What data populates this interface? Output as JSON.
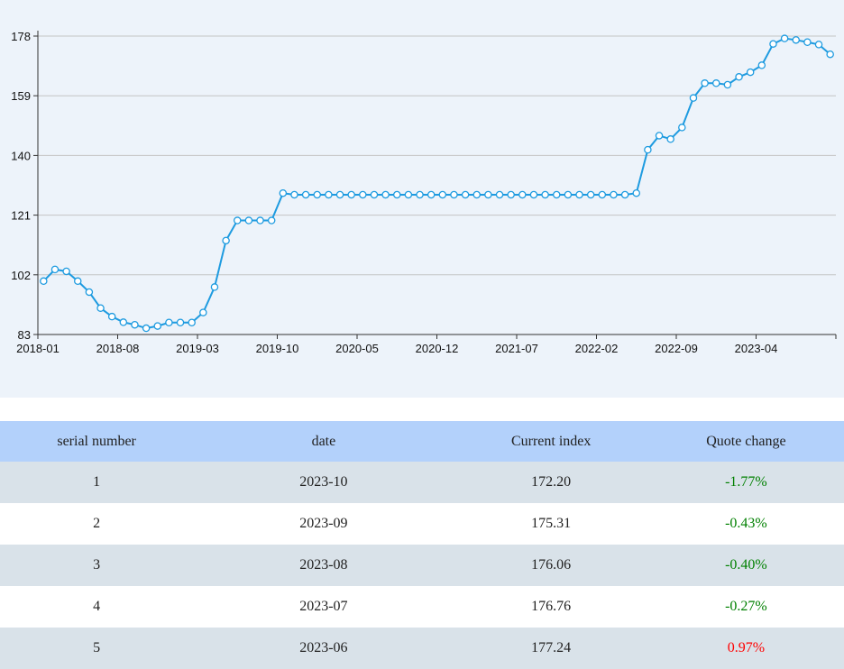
{
  "chart_data": {
    "type": "line",
    "x": [
      "2018-01",
      "2018-02",
      "2018-03",
      "2018-04",
      "2018-05",
      "2018-06",
      "2018-07",
      "2018-08",
      "2018-09",
      "2018-10",
      "2018-11",
      "2018-12",
      "2019-01",
      "2019-02",
      "2019-03",
      "2019-04",
      "2019-05",
      "2019-06",
      "2019-07",
      "2019-08",
      "2019-09",
      "2019-10",
      "2019-11",
      "2019-12",
      "2020-01",
      "2020-02",
      "2020-03",
      "2020-04",
      "2020-05",
      "2020-06",
      "2020-07",
      "2020-08",
      "2020-09",
      "2020-10",
      "2020-11",
      "2020-12",
      "2021-01",
      "2021-02",
      "2021-03",
      "2021-04",
      "2021-05",
      "2021-06",
      "2021-07",
      "2021-08",
      "2021-09",
      "2021-10",
      "2021-11",
      "2021-12",
      "2022-01",
      "2022-02",
      "2022-03",
      "2022-04",
      "2022-05",
      "2022-06",
      "2022-07",
      "2022-08",
      "2022-09",
      "2022-10",
      "2022-11",
      "2022-12",
      "2023-01",
      "2023-02",
      "2023-03",
      "2023-04",
      "2023-05",
      "2023-06",
      "2023-07",
      "2023-08",
      "2023-09",
      "2023-10"
    ],
    "series": [
      {
        "name": "Current index",
        "color": "#1e9be0",
        "values": [
          100.0,
          103.7,
          103.1,
          100.0,
          96.5,
          91.4,
          88.7,
          86.9,
          86.1,
          85.0,
          85.7,
          86.8,
          86.8,
          86.8,
          90.0,
          98.1,
          112.9,
          119.3,
          119.3,
          119.3,
          119.3,
          128.0,
          127.5,
          127.5,
          127.5,
          127.5,
          127.5,
          127.5,
          127.5,
          127.5,
          127.5,
          127.5,
          127.5,
          127.5,
          127.5,
          127.5,
          127.5,
          127.5,
          127.5,
          127.5,
          127.5,
          127.5,
          127.5,
          127.5,
          127.5,
          127.5,
          127.5,
          127.5,
          127.5,
          127.5,
          127.5,
          127.5,
          128.0,
          141.8,
          146.3,
          145.2,
          148.9,
          158.3,
          163.0,
          163.0,
          162.5,
          165.0,
          166.5,
          168.7,
          175.5,
          177.24,
          176.76,
          176.06,
          175.31,
          172.2
        ]
      }
    ],
    "x_tick_labels": [
      "2018-01",
      "2018-08",
      "2019-03",
      "2019-10",
      "2020-05",
      "2020-12",
      "2021-07",
      "2022-02",
      "2022-09",
      "2023-04"
    ],
    "y_ticks": [
      83,
      102,
      121,
      140,
      159,
      178
    ],
    "ylim": [
      83,
      178
    ],
    "grid": true,
    "title": "",
    "xlabel": "",
    "ylabel": ""
  },
  "table": {
    "headers": [
      "serial number",
      "date",
      "Current index",
      "Quote change"
    ],
    "rows": [
      {
        "n": "1",
        "date": "2023-10",
        "index": "172.20",
        "change": "-1.77%",
        "dir": "down"
      },
      {
        "n": "2",
        "date": "2023-09",
        "index": "175.31",
        "change": "-0.43%",
        "dir": "down"
      },
      {
        "n": "3",
        "date": "2023-08",
        "index": "176.06",
        "change": "-0.40%",
        "dir": "down"
      },
      {
        "n": "4",
        "date": "2023-07",
        "index": "176.76",
        "change": "-0.27%",
        "dir": "down"
      },
      {
        "n": "5",
        "date": "2023-06",
        "index": "177.24",
        "change": "0.97%",
        "dir": "up"
      }
    ],
    "colors": {
      "down": "#008000",
      "up": "#ff0000"
    }
  }
}
